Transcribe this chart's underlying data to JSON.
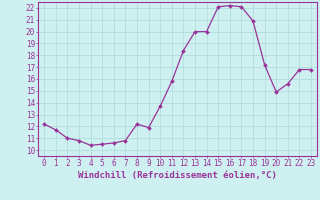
{
  "x": [
    0,
    1,
    2,
    3,
    4,
    5,
    6,
    7,
    8,
    9,
    10,
    11,
    12,
    13,
    14,
    15,
    16,
    17,
    18,
    19,
    20,
    21,
    22,
    23
  ],
  "y": [
    12.2,
    11.7,
    11.0,
    10.8,
    10.4,
    10.5,
    10.6,
    10.8,
    12.2,
    11.9,
    13.7,
    15.8,
    18.4,
    20.0,
    20.0,
    22.1,
    22.2,
    22.1,
    20.9,
    17.2,
    14.9,
    15.6,
    16.8,
    16.8
  ],
  "line_color": "#993399",
  "marker": "D",
  "marker_size": 2.0,
  "bg_color": "#cff0f0",
  "grid_color": "#b0dede",
  "xlabel": "Windchill (Refroidissement éolien,°C)",
  "ylim": [
    9.5,
    22.5
  ],
  "xlim": [
    -0.5,
    23.5
  ],
  "yticks": [
    10,
    11,
    12,
    13,
    14,
    15,
    16,
    17,
    18,
    19,
    20,
    21,
    22
  ],
  "xticks": [
    0,
    1,
    2,
    3,
    4,
    5,
    6,
    7,
    8,
    9,
    10,
    11,
    12,
    13,
    14,
    15,
    16,
    17,
    18,
    19,
    20,
    21,
    22,
    23
  ],
  "tick_fontsize": 5.5,
  "xlabel_fontsize": 6.5,
  "axis_color": "#993399",
  "spine_color": "#993399",
  "linewidth": 0.9
}
